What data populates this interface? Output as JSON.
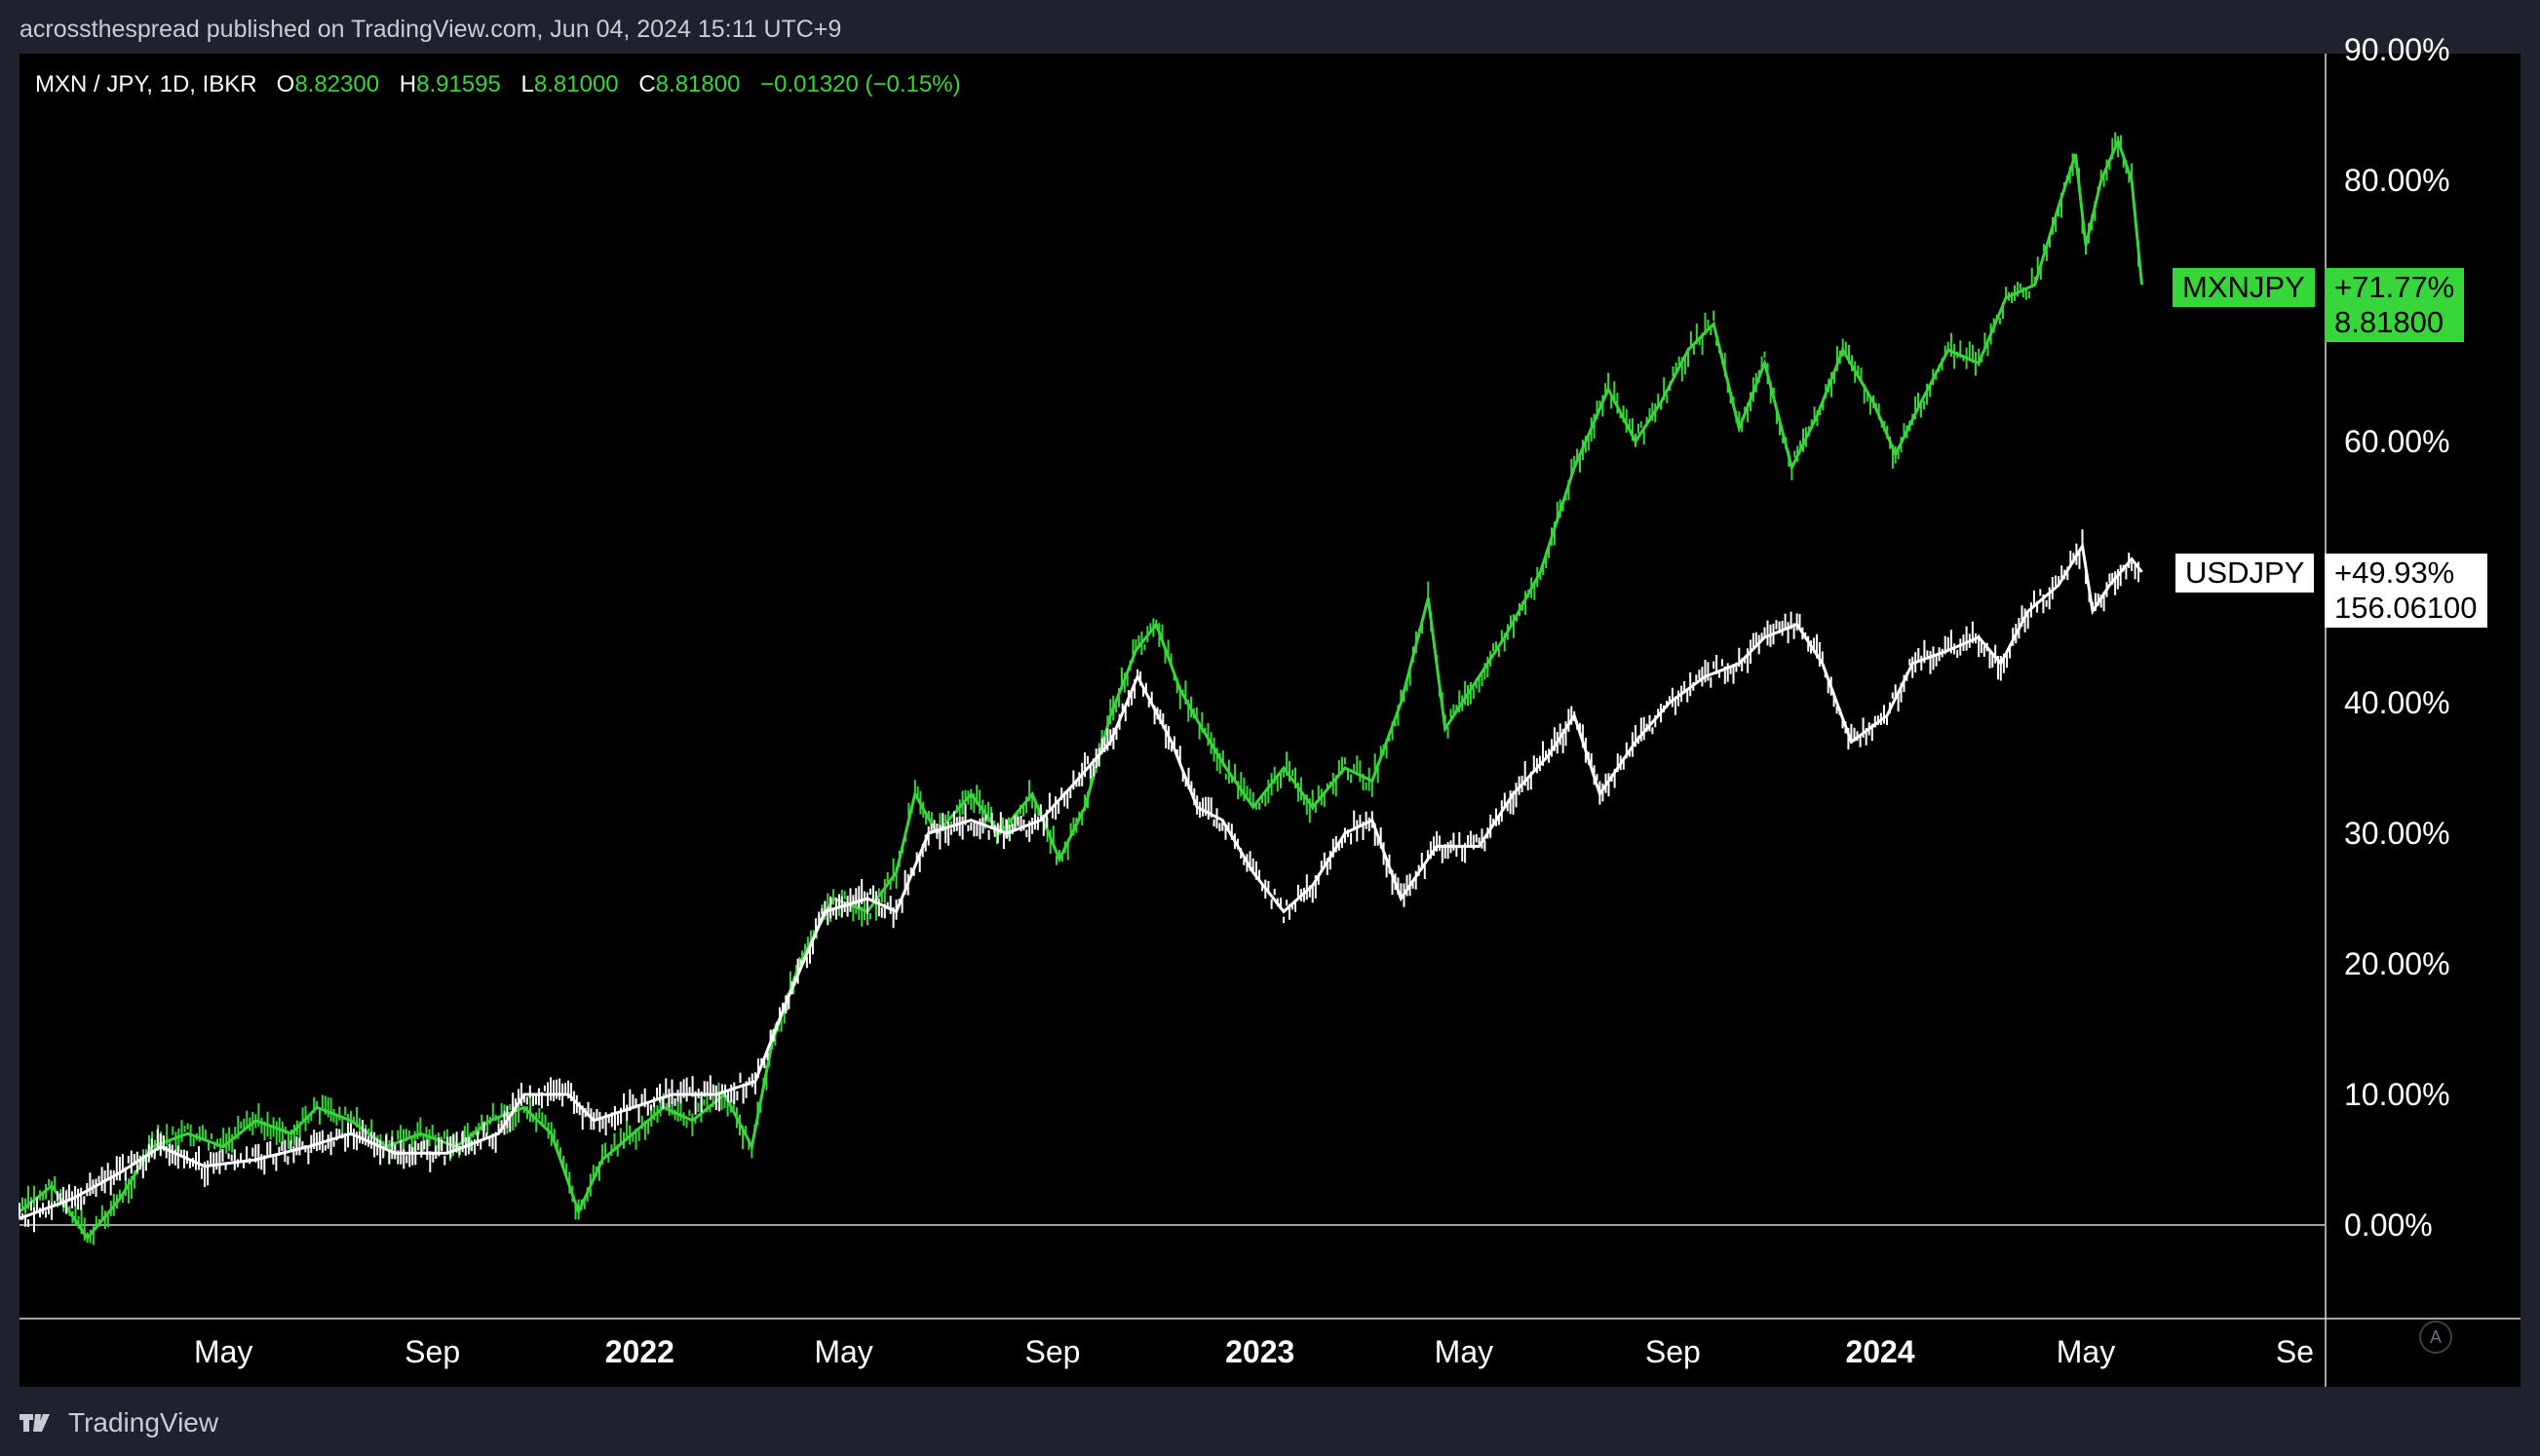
{
  "header": {
    "attribution": "acrossthespread published on TradingView.com, Jun 04, 2024 15:11 UTC+9"
  },
  "legend": {
    "symbol": "MXN / JPY, 1D, IBKR",
    "open_label": "O",
    "open": "8.82300",
    "high_label": "H",
    "high": "8.91595",
    "low_label": "L",
    "low": "8.81000",
    "close_label": "C",
    "close": "8.81800",
    "change": "−0.01320 (−0.15%)"
  },
  "footer": {
    "brand": "TradingView"
  },
  "auto_button": "A",
  "colors": {
    "background": "#000000",
    "frame": "#1e222d",
    "mxnjpy": "#37d63b",
    "usdjpy": "#ffffff",
    "axis_text": "#ffffff"
  },
  "chart_data": {
    "type": "line",
    "title": "MXN / JPY, 1D, IBKR",
    "ylabel": "",
    "xlabel": "",
    "y_unit": "percent change",
    "ylim": [
      -7,
      90
    ],
    "x_range": [
      "2021-01-01",
      "2024-09-30"
    ],
    "y_ticks": [
      "0.00%",
      "10.00%",
      "20.00%",
      "30.00%",
      "40.00%",
      "60.00%",
      "80.00%",
      "90.00%"
    ],
    "y_tick_values": [
      0,
      10,
      20,
      30,
      40,
      60,
      80,
      90
    ],
    "x_ticks": [
      {
        "date": "2021-05-01",
        "label": "May",
        "bold": false
      },
      {
        "date": "2021-09-01",
        "label": "Sep",
        "bold": false
      },
      {
        "date": "2022-01-01",
        "label": "2022",
        "bold": true
      },
      {
        "date": "2022-05-01",
        "label": "May",
        "bold": false
      },
      {
        "date": "2022-09-01",
        "label": "Sep",
        "bold": false
      },
      {
        "date": "2023-01-01",
        "label": "2023",
        "bold": true
      },
      {
        "date": "2023-05-01",
        "label": "May",
        "bold": false
      },
      {
        "date": "2023-09-01",
        "label": "Sep",
        "bold": false
      },
      {
        "date": "2024-01-01",
        "label": "2024",
        "bold": true
      },
      {
        "date": "2024-05-01",
        "label": "May",
        "bold": false
      },
      {
        "date": "2024-09-01",
        "label": "Se",
        "bold": false
      }
    ],
    "baseline": 0,
    "grid": false,
    "series": [
      {
        "name": "MXNJPY",
        "color": "#37d63b",
        "last_change": "+71.77%",
        "last_price": "8.81800",
        "points": [
          [
            "2021-01-01",
            1
          ],
          [
            "2021-01-20",
            3
          ],
          [
            "2021-02-10",
            -1
          ],
          [
            "2021-03-01",
            2
          ],
          [
            "2021-03-20",
            6
          ],
          [
            "2021-04-10",
            7
          ],
          [
            "2021-05-01",
            6
          ],
          [
            "2021-05-20",
            8
          ],
          [
            "2021-06-10",
            7
          ],
          [
            "2021-06-25",
            9
          ],
          [
            "2021-07-15",
            8
          ],
          [
            "2021-08-05",
            6
          ],
          [
            "2021-08-25",
            7
          ],
          [
            "2021-09-15",
            6
          ],
          [
            "2021-10-05",
            8
          ],
          [
            "2021-10-25",
            9
          ],
          [
            "2021-11-10",
            7
          ],
          [
            "2021-11-26",
            1
          ],
          [
            "2021-12-10",
            5
          ],
          [
            "2021-12-28",
            7
          ],
          [
            "2022-01-15",
            9
          ],
          [
            "2022-02-01",
            8
          ],
          [
            "2022-02-20",
            10
          ],
          [
            "2022-03-08",
            6
          ],
          [
            "2022-03-20",
            14
          ],
          [
            "2022-04-05",
            20
          ],
          [
            "2022-04-25",
            25
          ],
          [
            "2022-05-15",
            24
          ],
          [
            "2022-06-01",
            27
          ],
          [
            "2022-06-12",
            33
          ],
          [
            "2022-06-25",
            30
          ],
          [
            "2022-07-15",
            33
          ],
          [
            "2022-08-01",
            30
          ],
          [
            "2022-08-20",
            33
          ],
          [
            "2022-09-05",
            28
          ],
          [
            "2022-09-20",
            32
          ],
          [
            "2022-10-05",
            39
          ],
          [
            "2022-10-20",
            44
          ],
          [
            "2022-11-01",
            46
          ],
          [
            "2022-11-15",
            41
          ],
          [
            "2022-11-28",
            38
          ],
          [
            "2022-12-12",
            35
          ],
          [
            "2022-12-28",
            32
          ],
          [
            "2023-01-15",
            35
          ],
          [
            "2023-02-01",
            32
          ],
          [
            "2023-02-20",
            35
          ],
          [
            "2023-03-08",
            34
          ],
          [
            "2023-03-25",
            40
          ],
          [
            "2023-04-10",
            48
          ],
          [
            "2023-04-20",
            38
          ],
          [
            "2023-05-05",
            41
          ],
          [
            "2023-05-25",
            45
          ],
          [
            "2023-06-15",
            50
          ],
          [
            "2023-07-05",
            58
          ],
          [
            "2023-07-25",
            64
          ],
          [
            "2023-08-10",
            60
          ],
          [
            "2023-08-25",
            63
          ],
          [
            "2023-09-10",
            67
          ],
          [
            "2023-09-25",
            69
          ],
          [
            "2023-10-10",
            61
          ],
          [
            "2023-10-25",
            66
          ],
          [
            "2023-11-10",
            58
          ],
          [
            "2023-11-25",
            62
          ],
          [
            "2023-12-10",
            67
          ],
          [
            "2023-12-28",
            63
          ],
          [
            "2024-01-10",
            59
          ],
          [
            "2024-01-25",
            63
          ],
          [
            "2024-02-10",
            67
          ],
          [
            "2024-02-28",
            66
          ],
          [
            "2024-03-15",
            71
          ],
          [
            "2024-04-01",
            72
          ],
          [
            "2024-04-15",
            78
          ],
          [
            "2024-04-25",
            82
          ],
          [
            "2024-05-01",
            75
          ],
          [
            "2024-05-10",
            80
          ],
          [
            "2024-05-20",
            83
          ],
          [
            "2024-05-28",
            80
          ],
          [
            "2024-06-03",
            72
          ]
        ]
      },
      {
        "name": "USDJPY",
        "color": "#ffffff",
        "last_change": "+49.93%",
        "last_price": "156.06100",
        "points": [
          [
            "2021-01-01",
            0.5
          ],
          [
            "2021-02-01",
            2
          ],
          [
            "2021-03-01",
            4
          ],
          [
            "2021-03-25",
            6
          ],
          [
            "2021-04-20",
            4.5
          ],
          [
            "2021-05-20",
            5
          ],
          [
            "2021-06-20",
            6
          ],
          [
            "2021-07-15",
            7
          ],
          [
            "2021-08-10",
            5.5
          ],
          [
            "2021-09-10",
            5.5
          ],
          [
            "2021-10-10",
            7
          ],
          [
            "2021-10-25",
            10
          ],
          [
            "2021-11-20",
            10
          ],
          [
            "2021-12-05",
            8
          ],
          [
            "2021-12-28",
            9
          ],
          [
            "2022-01-20",
            10
          ],
          [
            "2022-02-15",
            10
          ],
          [
            "2022-03-10",
            11
          ],
          [
            "2022-03-28",
            17
          ],
          [
            "2022-04-20",
            24
          ],
          [
            "2022-05-15",
            25
          ],
          [
            "2022-06-01",
            24
          ],
          [
            "2022-06-20",
            30
          ],
          [
            "2022-07-15",
            31
          ],
          [
            "2022-08-05",
            30
          ],
          [
            "2022-08-25",
            31
          ],
          [
            "2022-09-15",
            34
          ],
          [
            "2022-10-05",
            37
          ],
          [
            "2022-10-21",
            42
          ],
          [
            "2022-11-10",
            37
          ],
          [
            "2022-11-25",
            32
          ],
          [
            "2022-12-10",
            31
          ],
          [
            "2022-12-28",
            27
          ],
          [
            "2023-01-15",
            24
          ],
          [
            "2023-02-01",
            26
          ],
          [
            "2023-02-20",
            30
          ],
          [
            "2023-03-08",
            31
          ],
          [
            "2023-03-25",
            25
          ],
          [
            "2023-04-15",
            29
          ],
          [
            "2023-05-10",
            29
          ],
          [
            "2023-05-30",
            33
          ],
          [
            "2023-06-20",
            36
          ],
          [
            "2023-07-05",
            39
          ],
          [
            "2023-07-20",
            33
          ],
          [
            "2023-08-10",
            37
          ],
          [
            "2023-08-30",
            40
          ],
          [
            "2023-09-20",
            42
          ],
          [
            "2023-10-10",
            43
          ],
          [
            "2023-10-25",
            45
          ],
          [
            "2023-11-13",
            46
          ],
          [
            "2023-11-28",
            43
          ],
          [
            "2023-12-15",
            37
          ],
          [
            "2024-01-05",
            39
          ],
          [
            "2024-01-20",
            43
          ],
          [
            "2024-02-10",
            44
          ],
          [
            "2024-02-28",
            45
          ],
          [
            "2024-03-12",
            43
          ],
          [
            "2024-03-28",
            47
          ],
          [
            "2024-04-15",
            49
          ],
          [
            "2024-04-29",
            52
          ],
          [
            "2024-05-05",
            47
          ],
          [
            "2024-05-15",
            49
          ],
          [
            "2024-05-28",
            51
          ],
          [
            "2024-06-03",
            50
          ]
        ]
      }
    ]
  }
}
